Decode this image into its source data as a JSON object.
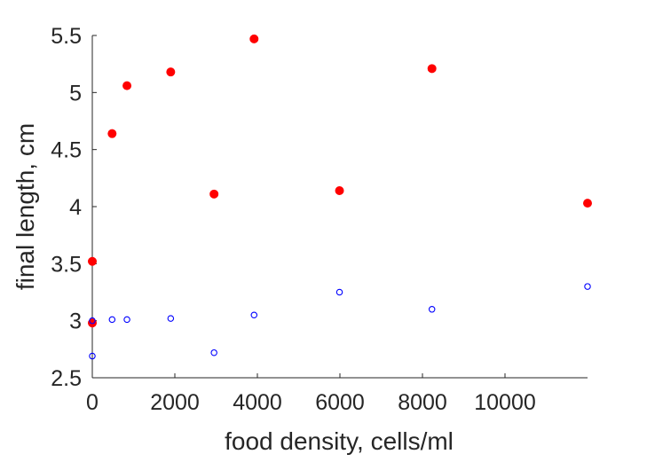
{
  "chart_data": {
    "type": "scatter",
    "title": "",
    "xlabel": "food density, cells/ml",
    "ylabel": "final length, cm",
    "xlim": [
      0,
      12000
    ],
    "ylim": [
      2.5,
      5.5
    ],
    "x_ticks": [
      0,
      2000,
      4000,
      6000,
      8000,
      10000
    ],
    "x_tick_labels": [
      "0",
      "2000",
      "4000",
      "6000",
      "8000",
      "10000"
    ],
    "y_ticks": [
      2.5,
      3,
      3.5,
      4,
      4.5,
      5,
      5.5
    ],
    "y_tick_labels": [
      "2.5",
      "3",
      "3.5",
      "4",
      "4.5",
      "5",
      "5.5"
    ],
    "grid": false,
    "series": [
      {
        "marker": "filled-circle",
        "color": "#ff0000",
        "points": [
          {
            "x": 0,
            "y": 3.52
          },
          {
            "x": 0,
            "y": 2.98
          },
          {
            "x": 480,
            "y": 4.64
          },
          {
            "x": 840,
            "y": 5.06
          },
          {
            "x": 1900,
            "y": 5.18
          },
          {
            "x": 2950,
            "y": 4.11
          },
          {
            "x": 3920,
            "y": 5.47
          },
          {
            "x": 5990,
            "y": 4.14
          },
          {
            "x": 8230,
            "y": 5.21
          },
          {
            "x": 12000,
            "y": 4.03
          }
        ]
      },
      {
        "marker": "open-circle",
        "color": "#0000ff",
        "points": [
          {
            "x": 0,
            "y": 2.69
          },
          {
            "x": 0,
            "y": 3.0
          },
          {
            "x": 480,
            "y": 3.01
          },
          {
            "x": 840,
            "y": 3.01
          },
          {
            "x": 1900,
            "y": 3.02
          },
          {
            "x": 2950,
            "y": 2.72
          },
          {
            "x": 3920,
            "y": 3.05
          },
          {
            "x": 5990,
            "y": 3.25
          },
          {
            "x": 8230,
            "y": 3.1
          },
          {
            "x": 12000,
            "y": 3.3
          }
        ]
      }
    ]
  }
}
